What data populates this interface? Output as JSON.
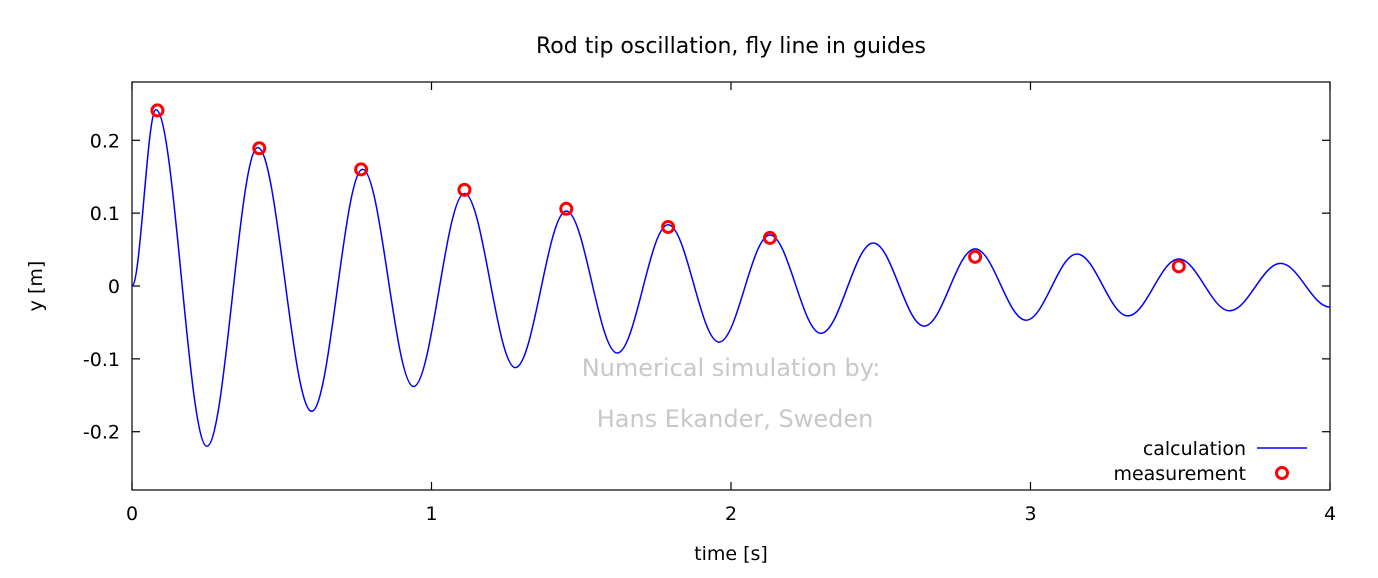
{
  "chart_data": {
    "type": "line",
    "title": "Rod tip oscillation, fly line in guides",
    "xlabel": "time [s]",
    "ylabel": "y [m]",
    "xlim": [
      0,
      4
    ],
    "ylim": [
      -0.28,
      0.28
    ],
    "x_ticks": [
      {
        "value": 0,
        "label": "0"
      },
      {
        "value": 1,
        "label": "1"
      },
      {
        "value": 2,
        "label": "2"
      },
      {
        "value": 3,
        "label": "3"
      },
      {
        "value": 4,
        "label": "4"
      }
    ],
    "y_ticks": [
      {
        "value": 0.2,
        "label": "0.2"
      },
      {
        "value": 0.1,
        "label": "0.1"
      },
      {
        "value": 0,
        "label": "0"
      },
      {
        "value": -0.1,
        "label": "-0.1"
      },
      {
        "value": -0.2,
        "label": "-0.2"
      }
    ],
    "grid": false,
    "legend_position": "bottom-right",
    "series": [
      {
        "name": "calculation",
        "style": "line",
        "color": "#0000ff",
        "points": [
          {
            "x": 0.0,
            "y": 0.0
          },
          {
            "x": 0.08,
            "y": 0.242
          },
          {
            "x": 0.25,
            "y": -0.22
          },
          {
            "x": 0.42,
            "y": 0.19
          },
          {
            "x": 0.6,
            "y": -0.172
          },
          {
            "x": 0.77,
            "y": 0.16
          },
          {
            "x": 0.94,
            "y": -0.138
          },
          {
            "x": 1.11,
            "y": 0.127
          },
          {
            "x": 1.28,
            "y": -0.112
          },
          {
            "x": 1.45,
            "y": 0.103
          },
          {
            "x": 1.62,
            "y": -0.092
          },
          {
            "x": 1.79,
            "y": 0.084
          },
          {
            "x": 1.96,
            "y": -0.077
          },
          {
            "x": 2.13,
            "y": 0.07
          },
          {
            "x": 2.3,
            "y": -0.065
          },
          {
            "x": 2.475,
            "y": 0.059
          },
          {
            "x": 2.645,
            "y": -0.055
          },
          {
            "x": 2.815,
            "y": 0.051
          },
          {
            "x": 2.985,
            "y": -0.047
          },
          {
            "x": 3.155,
            "y": 0.044
          },
          {
            "x": 3.325,
            "y": -0.041
          },
          {
            "x": 3.495,
            "y": 0.037
          },
          {
            "x": 3.665,
            "y": -0.034
          },
          {
            "x": 3.835,
            "y": 0.031
          },
          {
            "x": 4.0,
            "y": -0.029
          }
        ]
      },
      {
        "name": "measurement",
        "style": "points",
        "color": "#ff0000",
        "points": [
          {
            "x": 0.085,
            "y": 0.241
          },
          {
            "x": 0.425,
            "y": 0.189
          },
          {
            "x": 0.765,
            "y": 0.16
          },
          {
            "x": 1.11,
            "y": 0.132
          },
          {
            "x": 1.45,
            "y": 0.106
          },
          {
            "x": 1.79,
            "y": 0.081
          },
          {
            "x": 2.13,
            "y": 0.066
          },
          {
            "x": 2.815,
            "y": 0.04
          },
          {
            "x": 3.495,
            "y": 0.027
          }
        ]
      }
    ],
    "annotations": [
      "Numerical simulation by:",
      "Hans Ekander, Sweden"
    ]
  }
}
